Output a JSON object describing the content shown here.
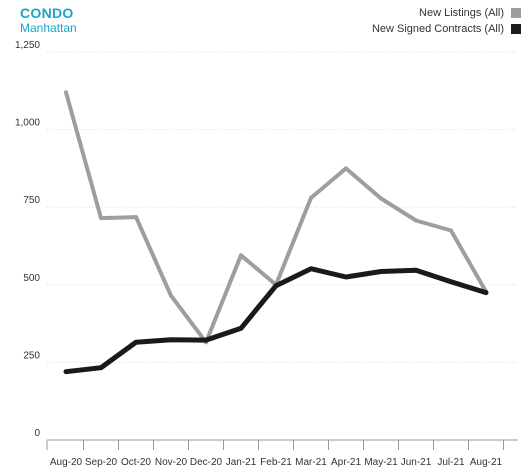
{
  "header": {
    "title": "CONDO",
    "subtitle": "Manhattan"
  },
  "colors": {
    "accent": "#1aa6c4",
    "listings": "#9e9e9e",
    "contracts": "#1a1a1a"
  },
  "chart_data": {
    "type": "line",
    "title": "CONDO",
    "subtitle": "Manhattan",
    "xlabel": "",
    "ylabel": "",
    "categories": [
      "Aug-20",
      "Sep-20",
      "Oct-20",
      "Nov-20",
      "Dec-20",
      "Jan-21",
      "Feb-21",
      "Mar-21",
      "Apr-21",
      "May-21",
      "Jun-21",
      "Jul-21",
      "Aug-21"
    ],
    "ylim": [
      0,
      1250
    ],
    "yticks": [
      0,
      250,
      500,
      750,
      "1,000",
      "1,250"
    ],
    "ytick_values": [
      0,
      250,
      500,
      750,
      1000,
      1250
    ],
    "grid": true,
    "legend_position": "top-right",
    "series": [
      {
        "name": "New Listings (All)",
        "color": "#9e9e9e",
        "values": [
          1120,
          715,
          718,
          465,
          315,
          595,
          500,
          780,
          875,
          778,
          707,
          675,
          478
        ]
      },
      {
        "name": "New Signed Contracts (All)",
        "color": "#1a1a1a",
        "values": [
          220,
          233,
          315,
          323,
          322,
          360,
          497,
          552,
          525,
          543,
          547,
          510,
          475
        ]
      }
    ]
  }
}
